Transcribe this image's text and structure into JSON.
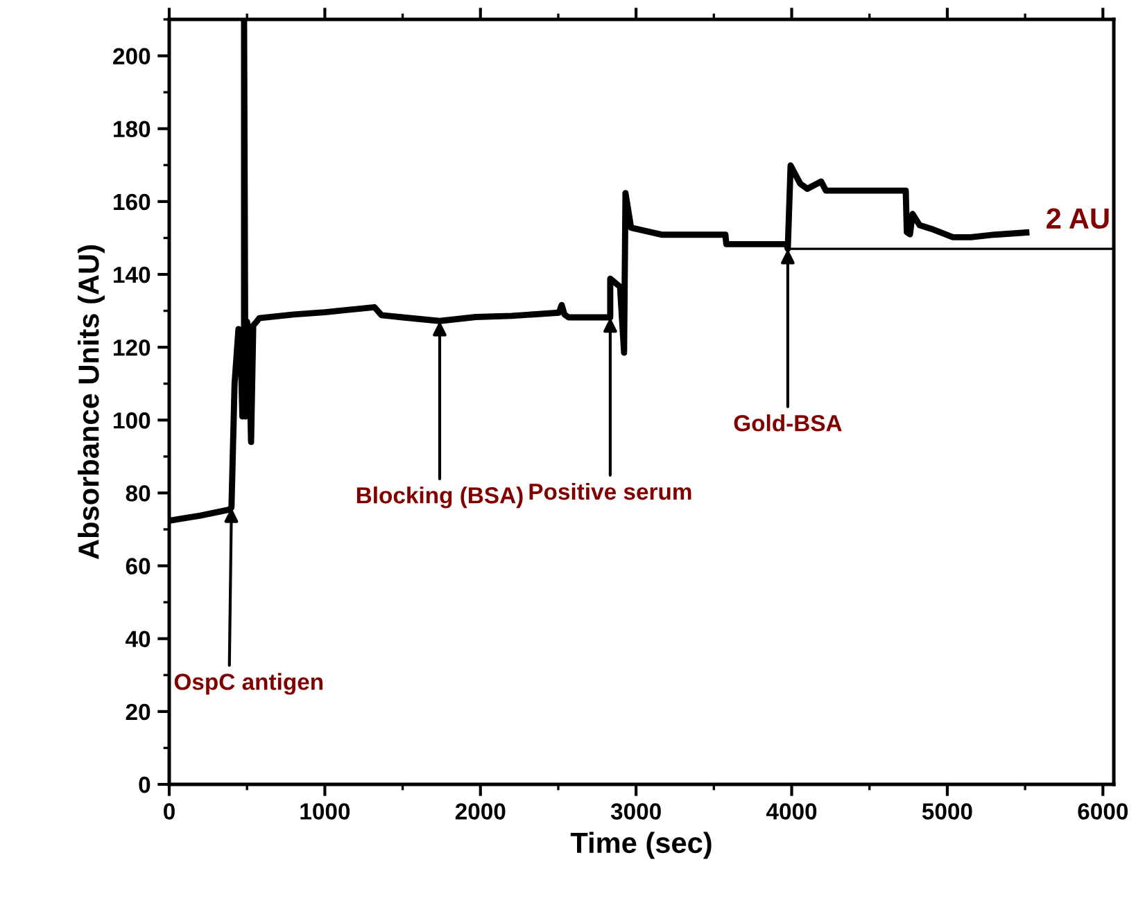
{
  "chart_data": {
    "type": "line",
    "xlabel": "Time (sec)",
    "ylabel": "Absorbance Units (AU)",
    "xlim": [
      0,
      6070
    ],
    "ylim": [
      0,
      210
    ],
    "xticks": [
      0,
      1000,
      2000,
      3000,
      4000,
      5000,
      6000
    ],
    "yticks": [
      0,
      20,
      40,
      60,
      80,
      100,
      120,
      140,
      160,
      180,
      200
    ],
    "grid": false,
    "legend": false,
    "marker": "none",
    "line_style": "solid",
    "series": [
      {
        "color": "#000000",
        "x": [
          0,
          200,
          383,
          400,
          420,
          445,
          460,
          470,
          481,
          481,
          490,
          500,
          510,
          526,
          540,
          561,
          579,
          800,
          1000,
          1319,
          1364,
          1500,
          1738,
          1970,
          2200,
          2504,
          2522,
          2540,
          2567,
          2834,
          2834,
          2897,
          2923,
          2932,
          2968,
          3164,
          3574,
          3580,
          3966,
          3975,
          3993,
          4055,
          4100,
          4189,
          4220,
          4733,
          4740,
          4760,
          4777,
          4822,
          4911,
          5036,
          5151,
          5303,
          5508
        ],
        "values": [
          72.4,
          73.8,
          75.4,
          76,
          110,
          125,
          118,
          101,
          126,
          210,
          101,
          127,
          124,
          94,
          126,
          127,
          128,
          129,
          129.6,
          131,
          128.8,
          128.2,
          127.2,
          128.3,
          128.6,
          129.5,
          131.6,
          129,
          128.2,
          128.2,
          138.8,
          136.6,
          118.5,
          162.3,
          152.8,
          150.9,
          150.9,
          148.3,
          148.3,
          147,
          169.9,
          164.9,
          163.5,
          165.5,
          163,
          163,
          151.6,
          151,
          156.6,
          153.5,
          152.3,
          150.2,
          150.2,
          150.9,
          151.5
        ]
      },
      {
        "color": "#000000",
        "x": [
          3975,
          6070
        ],
        "values": [
          147,
          147
        ]
      }
    ],
    "annotations": [
      {
        "text": "OspC antigen",
        "x": 400,
        "y": 76
      },
      {
        "text": "Blocking (BSA)",
        "x": 1738,
        "y": 127.2
      },
      {
        "text": "Positive serum",
        "x": 2834,
        "y": 128.2
      },
      {
        "text": "Gold-BSA",
        "x": 3975,
        "y": 147
      },
      {
        "text": "2 AU",
        "x": 5508,
        "y": 151.5
      }
    ]
  }
}
